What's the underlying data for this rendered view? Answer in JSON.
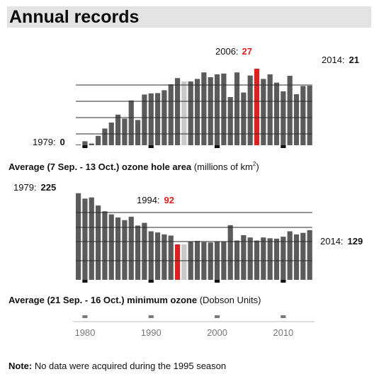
{
  "header": {
    "title": "Annual records"
  },
  "colors": {
    "bar": "#5b5b5b",
    "highlight": "#e02020",
    "missing": "#c9c9c9",
    "marker": "#111111",
    "gridline": "#2a2a2a"
  },
  "chart_data": [
    {
      "type": "bar",
      "title": "",
      "caption_bold": "Average (7 Sep. - 13 Oct.) ozone hole area",
      "caption_rest": " (millions of km",
      "caption_sup": "2",
      "caption_end": ")",
      "x": [
        1979,
        1980,
        1981,
        1982,
        1983,
        1984,
        1985,
        1986,
        1987,
        1988,
        1989,
        1990,
        1991,
        1992,
        1993,
        1994,
        1995,
        1996,
        1997,
        1998,
        1999,
        2000,
        2001,
        2002,
        2003,
        2004,
        2005,
        2006,
        2007,
        2008,
        2009,
        2010,
        2011,
        2012,
        2013,
        2014
      ],
      "values": [
        0.1,
        1.4,
        0.6,
        3.3,
        5.9,
        8.0,
        10.8,
        9.4,
        15.8,
        8.9,
        17.9,
        18.3,
        18.4,
        19.4,
        21.5,
        23.7,
        null,
        22.5,
        23.4,
        25.7,
        24.0,
        25.0,
        25.3,
        17.0,
        25.7,
        18.6,
        24.6,
        27.0,
        23.4,
        25.0,
        22.1,
        19.0,
        24.5,
        18.0,
        20.9,
        21.0
      ],
      "highlight": 2006,
      "missing_year": 1995,
      "ylim": [
        0,
        28
      ],
      "annotations": [
        {
          "label": "1979:",
          "value": "0"
        },
        {
          "label": "2006:",
          "value": "27"
        },
        {
          "label": "2014:",
          "value": "21"
        }
      ]
    },
    {
      "type": "bar",
      "title": "",
      "caption_bold": "Average (21 Sep. - 16 Oct.) minimum ozone",
      "caption_rest": " (Dobson Units)",
      "x": [
        1979,
        1980,
        1981,
        1982,
        1983,
        1984,
        1985,
        1986,
        1987,
        1988,
        1989,
        1990,
        1991,
        1992,
        1993,
        1994,
        1995,
        1996,
        1997,
        1998,
        1999,
        2000,
        2001,
        2002,
        2003,
        2004,
        2005,
        2006,
        2007,
        2008,
        2009,
        2010,
        2011,
        2012,
        2013,
        2014
      ],
      "values": [
        225,
        211,
        214,
        193,
        178,
        170,
        162,
        155,
        164,
        141,
        148,
        126,
        123,
        118,
        115,
        92,
        null,
        100,
        101,
        98,
        97,
        99,
        100,
        142,
        102,
        116,
        110,
        102,
        110,
        108,
        107,
        112,
        126,
        118,
        122,
        129
      ],
      "highlight": 1994,
      "missing_year": 1995,
      "ylim": [
        0,
        230
      ],
      "annotations": [
        {
          "label": "1979:",
          "value": "225"
        },
        {
          "label": "1994:",
          "value": "92"
        },
        {
          "label": "2014:",
          "value": "129"
        }
      ]
    }
  ],
  "x_axis": {
    "ticks": [
      "1980",
      "1990",
      "2000",
      "2010"
    ]
  },
  "note": {
    "label": "Note:",
    "text": " No data were acquired during the 1995 season"
  }
}
